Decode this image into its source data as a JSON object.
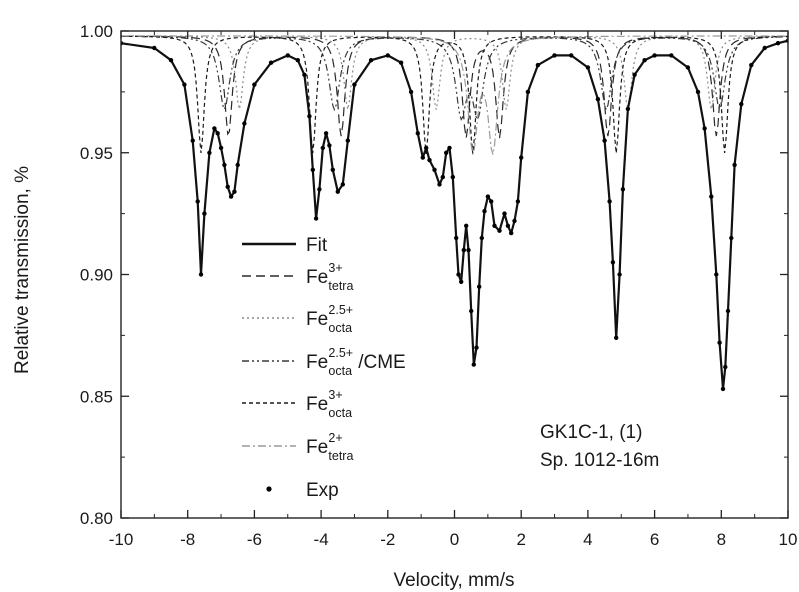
{
  "chart_data": {
    "type": "line",
    "title": "",
    "xlabel": "Velocity, mm/s",
    "ylabel": "Relative transmission, %",
    "xlim": [
      -10,
      10
    ],
    "ylim": [
      0.8,
      1.0
    ],
    "grid": false,
    "legend_placement": "center-left",
    "x_ticks": [
      -10,
      -8,
      -6,
      -4,
      -2,
      0,
      2,
      4,
      6,
      8,
      10
    ],
    "x_tick_labels": [
      "-10",
      "-8",
      "-6",
      "-4",
      "-2",
      "0",
      "2",
      "4",
      "6",
      "8",
      "10"
    ],
    "y_ticks": [
      0.8,
      0.85,
      0.9,
      0.95,
      1.0
    ],
    "y_tick_labels": [
      "0.80",
      "0.85",
      "0.90",
      "0.95",
      "1.00"
    ],
    "annotation": {
      "line1": "GK1C-1, (1)",
      "line2": "Sp. 1012-16m"
    },
    "legend": [
      {
        "base": "Fit",
        "sup": "",
        "sub": "",
        "suffix": "",
        "style": "solid"
      },
      {
        "base": "Fe",
        "sup": "3+",
        "sub": "tetra",
        "suffix": "",
        "style": "dash"
      },
      {
        "base": "Fe",
        "sup": "2.5+",
        "sub": "octa",
        "suffix": "",
        "style": "dot"
      },
      {
        "base": "Fe",
        "sup": "2.5+",
        "sub": "octa",
        "suffix": "/CME",
        "style": "dashdotdot"
      },
      {
        "base": "Fe",
        "sup": "3+",
        "sub": "octa",
        "suffix": "",
        "style": "shortdash"
      },
      {
        "base": "Fe",
        "sup": "2+",
        "sub": "tetra",
        "suffix": "",
        "style": "dashdot"
      },
      {
        "base": "Exp",
        "sup": "",
        "sub": "",
        "suffix": "",
        "style": "marker"
      }
    ],
    "series": [
      {
        "name": "Fit",
        "style": "solid",
        "x": [
          -10.0,
          -9.0,
          -8.5,
          -8.1,
          -7.85,
          -7.7,
          -7.6,
          -7.5,
          -7.35,
          -7.2,
          -7.1,
          -7.0,
          -6.9,
          -6.8,
          -6.7,
          -6.6,
          -6.5,
          -6.3,
          -6.0,
          -5.5,
          -5.0,
          -4.7,
          -4.5,
          -4.35,
          -4.25,
          -4.15,
          -4.05,
          -3.95,
          -3.85,
          -3.75,
          -3.65,
          -3.5,
          -3.35,
          -3.2,
          -3.0,
          -2.5,
          -2.0,
          -1.6,
          -1.3,
          -1.1,
          -0.95,
          -0.85,
          -0.75,
          -0.6,
          -0.45,
          -0.35,
          -0.25,
          -0.15,
          -0.05,
          0.05,
          0.12,
          0.2,
          0.28,
          0.35,
          0.42,
          0.5,
          0.58,
          0.66,
          0.74,
          0.82,
          0.9,
          1.0,
          1.1,
          1.2,
          1.35,
          1.5,
          1.6,
          1.7,
          1.8,
          1.9,
          2.0,
          2.2,
          2.5,
          3.0,
          3.5,
          4.0,
          4.3,
          4.5,
          4.65,
          4.75,
          4.85,
          4.95,
          5.05,
          5.2,
          5.4,
          5.7,
          6.0,
          6.5,
          7.0,
          7.3,
          7.5,
          7.7,
          7.85,
          7.95,
          8.05,
          8.12,
          8.2,
          8.3,
          8.4,
          8.6,
          8.9,
          9.3,
          9.7,
          10.0
        ],
        "y": [
          0.995,
          0.993,
          0.988,
          0.978,
          0.955,
          0.93,
          0.9,
          0.925,
          0.95,
          0.96,
          0.958,
          0.952,
          0.945,
          0.936,
          0.932,
          0.934,
          0.945,
          0.962,
          0.978,
          0.987,
          0.99,
          0.988,
          0.982,
          0.965,
          0.943,
          0.923,
          0.935,
          0.952,
          0.958,
          0.953,
          0.943,
          0.934,
          0.937,
          0.955,
          0.978,
          0.988,
          0.99,
          0.987,
          0.975,
          0.958,
          0.948,
          0.952,
          0.947,
          0.943,
          0.937,
          0.94,
          0.95,
          0.952,
          0.94,
          0.915,
          0.9,
          0.897,
          0.91,
          0.92,
          0.91,
          0.885,
          0.863,
          0.87,
          0.895,
          0.915,
          0.926,
          0.932,
          0.93,
          0.92,
          0.918,
          0.925,
          0.92,
          0.917,
          0.922,
          0.93,
          0.948,
          0.975,
          0.986,
          0.99,
          0.99,
          0.985,
          0.972,
          0.955,
          0.93,
          0.905,
          0.874,
          0.9,
          0.935,
          0.968,
          0.982,
          0.988,
          0.99,
          0.99,
          0.985,
          0.975,
          0.96,
          0.932,
          0.9,
          0.872,
          0.853,
          0.862,
          0.885,
          0.915,
          0.945,
          0.97,
          0.986,
          0.993,
          0.995,
          0.996
        ]
      }
    ],
    "components": [
      {
        "name": "Fe3+ tetra",
        "style": "dash",
        "depth": 0.041,
        "width": 0.14,
        "centers": [
          -6.78,
          -3.4,
          0.35,
          1.35,
          4.6,
          7.85
        ]
      },
      {
        "name": "Fe2.5+ octa",
        "style": "dot",
        "depth": 0.03,
        "width": 0.14,
        "centers": [
          -6.45,
          -3.2,
          -0.55,
          1.55,
          5.2,
          7.7
        ]
      },
      {
        "name": "Fe2.5+ octa/CME",
        "style": "dashdotdot",
        "depth": 0.03,
        "width": 0.2,
        "centers": [
          -6.9,
          -3.6,
          0.2,
          0.7,
          4.55,
          7.95
        ]
      },
      {
        "name": "Fe3+ octa",
        "style": "shortdash",
        "depth": 0.048,
        "width": 0.12,
        "centers": [
          -7.6,
          -4.25,
          -0.85,
          0.55,
          4.85,
          8.1
        ]
      },
      {
        "name": "Fe2+ tetra",
        "style": "dashdot",
        "depth": 0.045,
        "width": 0.18,
        "centers": [
          0.55,
          1.15
        ]
      }
    ],
    "exp_marker": "circle"
  }
}
